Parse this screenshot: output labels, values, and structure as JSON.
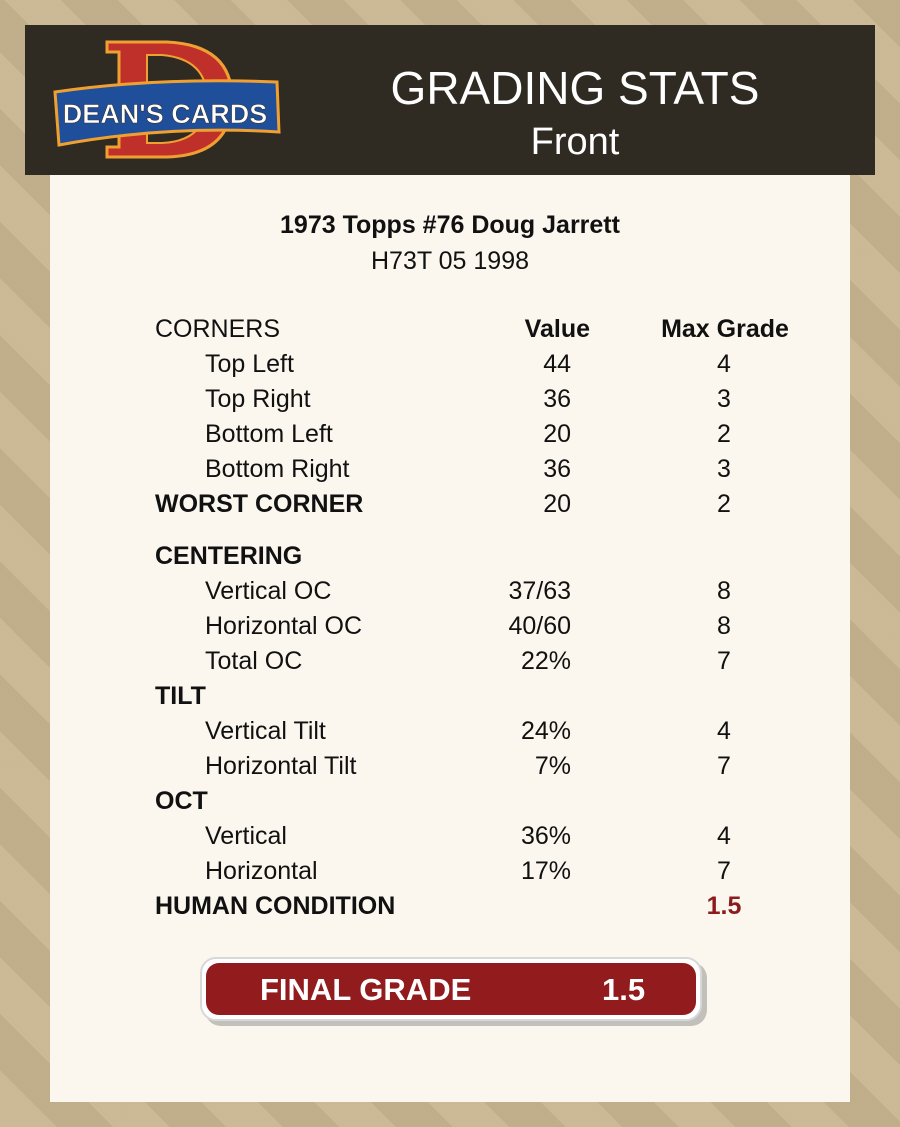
{
  "header": {
    "logo_text": "DEAN'S CARDS",
    "title": "GRADING STATS",
    "subtitle": "Front"
  },
  "card": {
    "name": "1973 Topps #76 Doug Jarrett",
    "code": "H73T 05 1998"
  },
  "columns": {
    "value": "Value",
    "max_grade": "Max Grade"
  },
  "rows": [
    {
      "type": "colhdr",
      "label": "CORNERS"
    },
    {
      "type": "item",
      "label": "Top Left",
      "value": "44",
      "max": "4"
    },
    {
      "type": "item",
      "label": "Top Right",
      "value": "36",
      "max": "3"
    },
    {
      "type": "item",
      "label": "Bottom Left",
      "value": "20",
      "max": "2"
    },
    {
      "type": "item",
      "label": "Bottom Right",
      "value": "36",
      "max": "3"
    },
    {
      "type": "hdr",
      "label": "WORST CORNER",
      "value": "20",
      "max": "2"
    },
    {
      "type": "hdr gap",
      "label": "CENTERING"
    },
    {
      "type": "item",
      "label": "Vertical OC",
      "value": "37/63",
      "max": "8"
    },
    {
      "type": "item",
      "label": "Horizontal OC",
      "value": "40/60",
      "max": "8"
    },
    {
      "type": "item",
      "label": "Total OC",
      "value": "22%",
      "max": "7"
    },
    {
      "type": "hdr",
      "label": "TILT"
    },
    {
      "type": "item",
      "label": "Vertical Tilt",
      "value": "24%",
      "max": "4"
    },
    {
      "type": "item",
      "label": "Horizontal Tilt",
      "value": "7%",
      "max": "7"
    },
    {
      "type": "hdr",
      "label": "OCT"
    },
    {
      "type": "item",
      "label": "Vertical",
      "value": "36%",
      "max": "4"
    },
    {
      "type": "item",
      "label": "Horizontal",
      "value": "17%",
      "max": "7"
    },
    {
      "type": "hdr",
      "label": "HUMAN CONDITION",
      "max": "1.5",
      "highlight": true
    }
  ],
  "final": {
    "label": "FINAL GRADE",
    "value": "1.5"
  },
  "colors": {
    "header_bg": "#2f2a22",
    "panel_bg": "#fbf7ee",
    "accent_red": "#921b1d"
  }
}
